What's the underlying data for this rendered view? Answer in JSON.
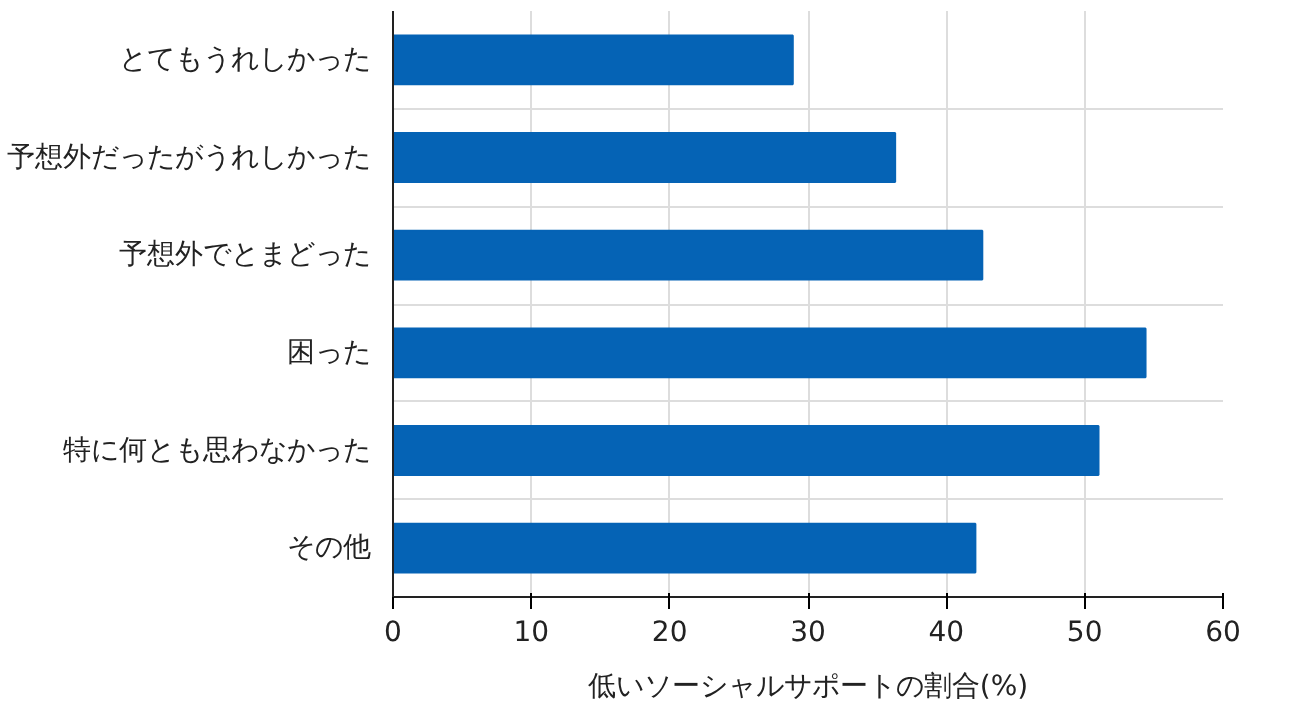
{
  "chart_data": {
    "type": "bar",
    "orientation": "horizontal",
    "xlabel": "低いソーシャルサポートの割合(%)",
    "categories": [
      "とてもうれしかった",
      "予想外だったがうれしかった",
      "予想外でとまどった",
      "困った",
      "特に何とも思わなかった",
      "その他"
    ],
    "values": [
      28.9,
      36.3,
      42.6,
      54.4,
      51.0,
      42.1
    ],
    "color": "#0563b5",
    "xlim": [
      0,
      60
    ],
    "xticks": [
      0,
      10,
      20,
      30,
      40,
      50,
      60
    ],
    "grid": true
  }
}
